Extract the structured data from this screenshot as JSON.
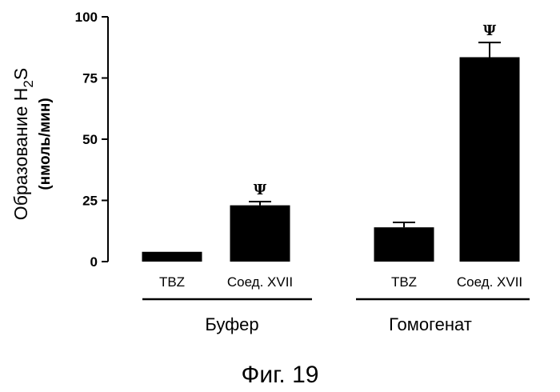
{
  "chart_data": {
    "type": "bar",
    "ylabel": "Образование H",
    "ylabel_subscript": "2",
    "ylabel_tail": "S",
    "ylabel_units": "(нмоль/мин)",
    "ylim": [
      0,
      100
    ],
    "yticks": [
      "0",
      "25",
      "50",
      "75",
      "100"
    ],
    "ytick_values": [
      0,
      25,
      50,
      75,
      100
    ],
    "groups": [
      {
        "name": "Буфер",
        "bars": [
          {
            "label": "TBZ",
            "value": 4,
            "error": 0,
            "marker": ""
          },
          {
            "label": "Соед. XVII",
            "value": 23,
            "error": 1.5,
            "marker": "Ψ"
          }
        ]
      },
      {
        "name": "Гомогенат",
        "bars": [
          {
            "label": "TBZ",
            "value": 14,
            "error": 2,
            "marker": ""
          },
          {
            "label": "Соед. XVII",
            "value": 83.5,
            "error": 6,
            "marker": "Ψ"
          }
        ]
      }
    ],
    "bar_color": "#000000",
    "grid": false
  },
  "figure": {
    "caption": "Фиг. 19"
  }
}
